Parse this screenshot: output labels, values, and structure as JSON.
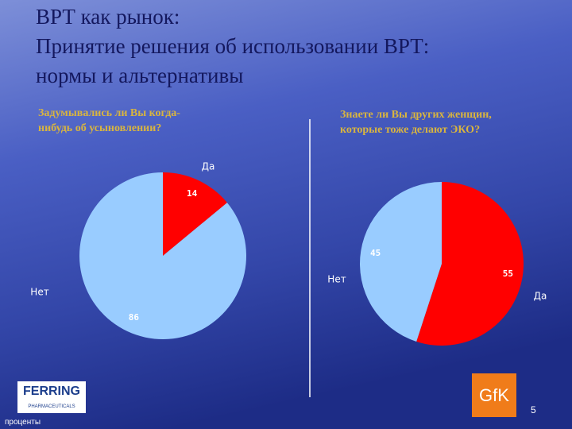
{
  "slide": {
    "title": [
      "ВРТ как рынок:",
      "Принятие решения об использовании ВРТ:",
      "нормы и альтернативы"
    ],
    "unit": "проценты",
    "page": "5",
    "logos": [
      "FERRING",
      "PHARMACEUTICALS",
      "GfK"
    ]
  },
  "chart_data": [
    {
      "type": "pie",
      "title": [
        "Задумывались ли Вы когда-",
        "нибудь об усыновлении?"
      ],
      "categories": [
        "Да",
        "Нет"
      ],
      "values": [
        14,
        86
      ],
      "colors": [
        "#ff0000",
        "#99ccff"
      ]
    },
    {
      "type": "pie",
      "title": [
        "Знаете ли Вы других женщин,",
        "которые тоже делают ЭКО?"
      ],
      "categories": [
        "Да",
        "Нет"
      ],
      "values": [
        55,
        45
      ],
      "colors": [
        "#ff0000",
        "#99ccff"
      ]
    }
  ]
}
